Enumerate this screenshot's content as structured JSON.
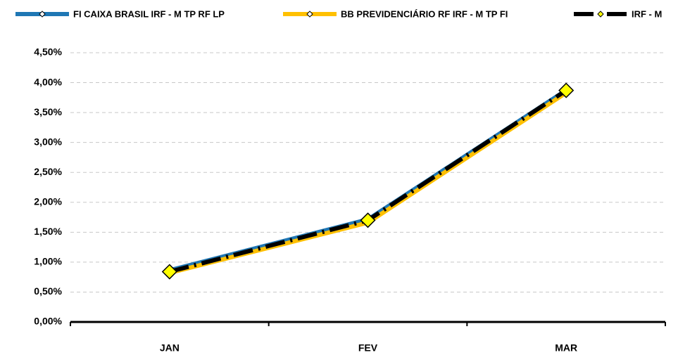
{
  "chart_data": {
    "type": "line",
    "categories": [
      "JAN",
      "FEV",
      "MAR"
    ],
    "series": [
      {
        "name": "FI CAIXA BRASIL IRF - M TP RF LP",
        "color": "#1f77b4",
        "values": [
          0.87,
          1.72,
          3.88
        ],
        "markers": false
      },
      {
        "name": "BB PREVIDENCIÁRIO RF IRF - M TP FI",
        "color": "#ffc000",
        "values": [
          0.82,
          1.66,
          3.83
        ],
        "markers": false
      },
      {
        "name": "IRF - M",
        "color": "#000000",
        "values": [
          0.84,
          1.7,
          3.87
        ],
        "markers": true
      }
    ],
    "ylim": [
      0,
      4.5
    ],
    "yticks": [
      {
        "value": 0,
        "label": "0,00%"
      },
      {
        "value": 0.5,
        "label": "0,50%"
      },
      {
        "value": 1,
        "label": "1,00%"
      },
      {
        "value": 1.5,
        "label": "1,50%"
      },
      {
        "value": 2,
        "label": "2,00%"
      },
      {
        "value": 2.5,
        "label": "2,50%"
      },
      {
        "value": 3,
        "label": "3,00%"
      },
      {
        "value": 3.5,
        "label": "3,50%"
      },
      {
        "value": 4,
        "label": "4,00%"
      },
      {
        "value": 4.5,
        "label": "4,50%"
      }
    ],
    "grid": true,
    "legend": "top"
  }
}
